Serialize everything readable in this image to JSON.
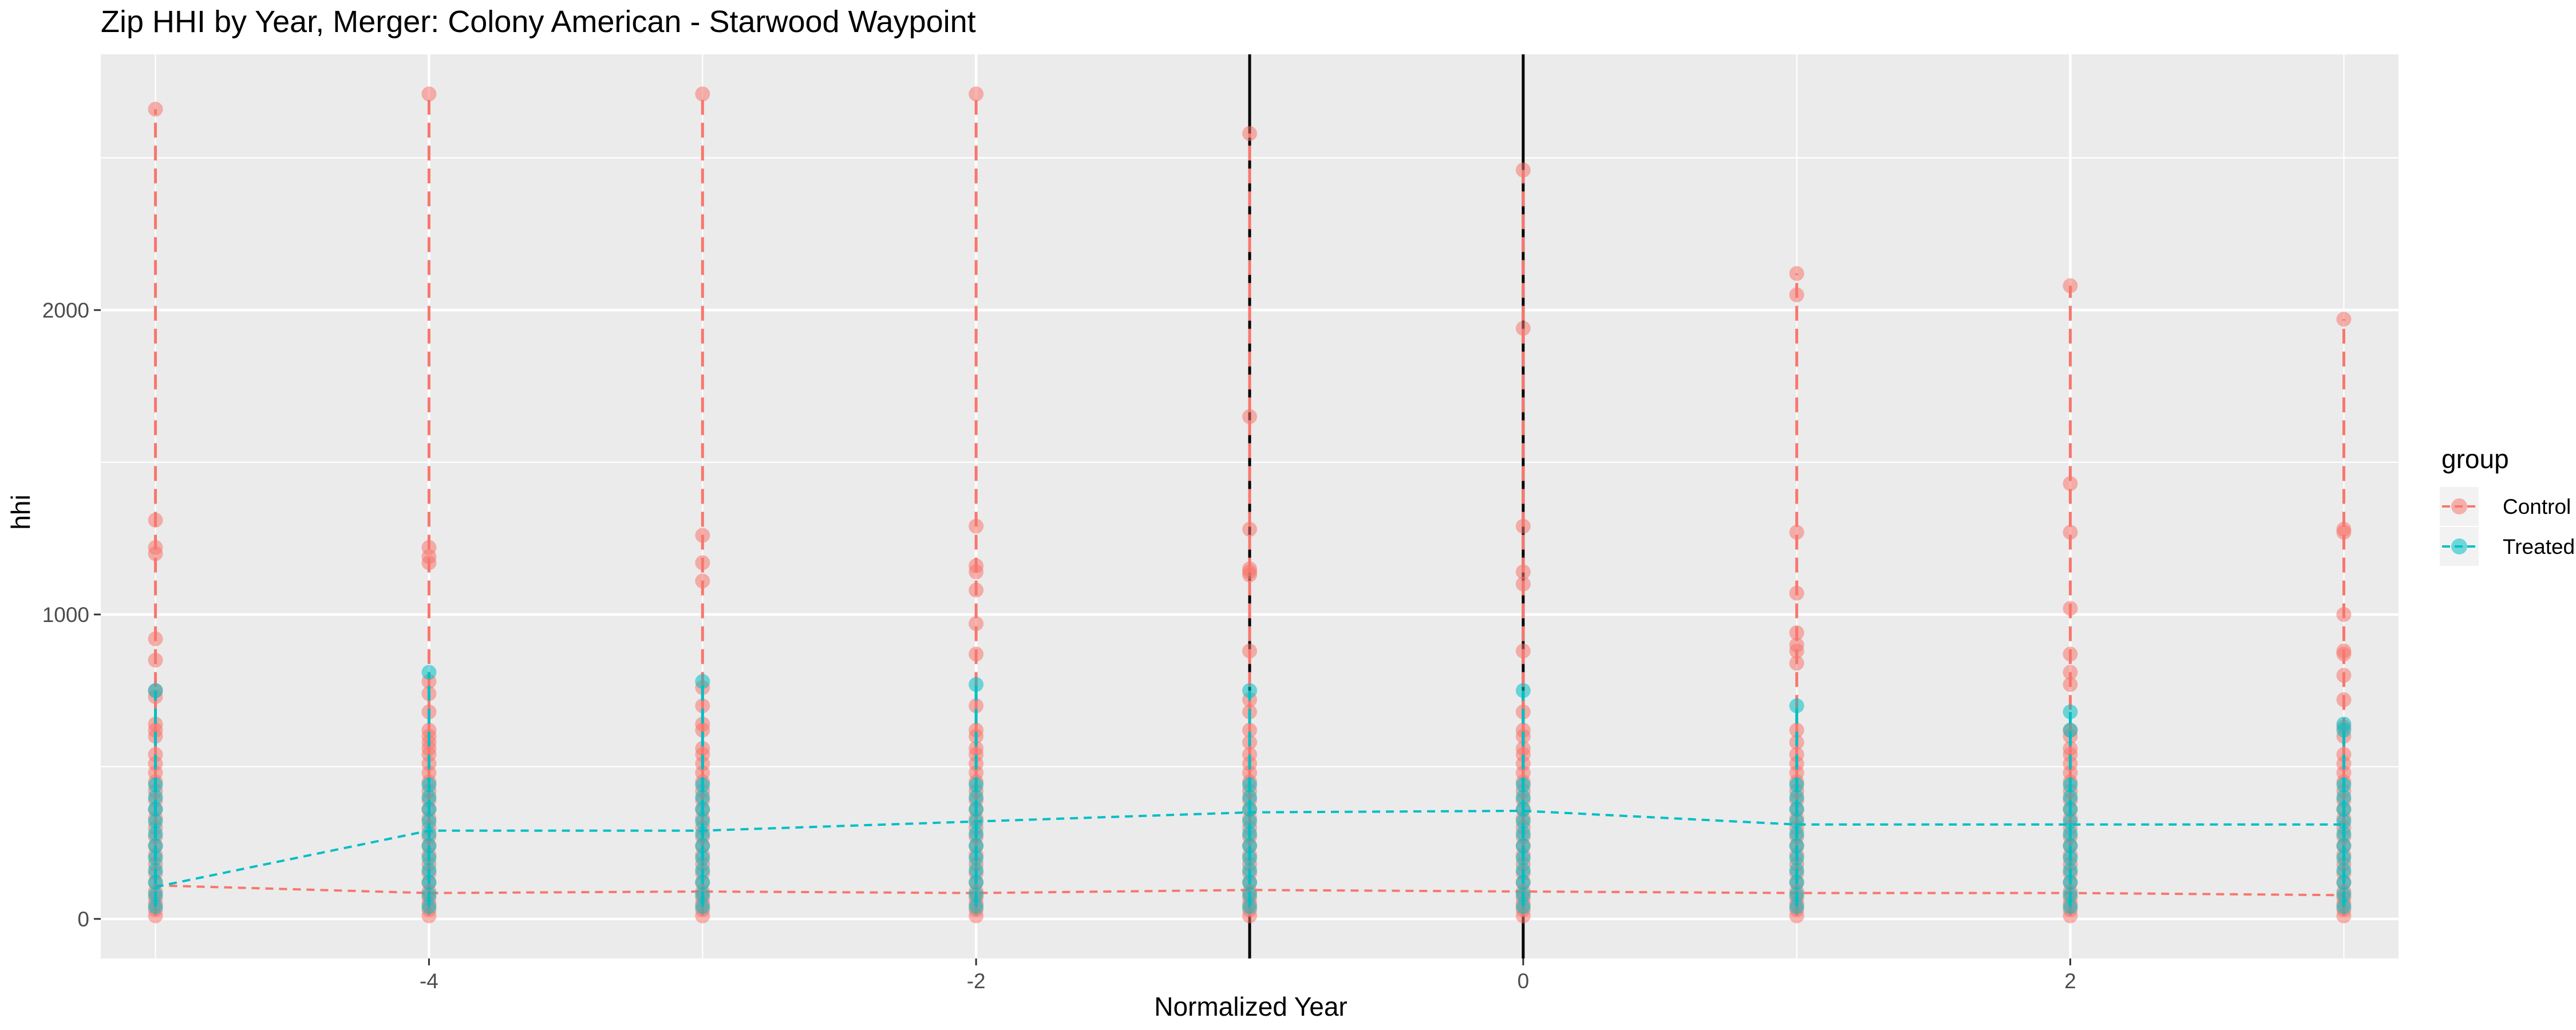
{
  "chart_data": {
    "type": "scatter",
    "title": "Zip HHI by Year, Merger: Colony American - Starwood Waypoint",
    "xlabel": "Normalized Year",
    "ylabel": "hhi",
    "xlim": [
      -5.2,
      3.2
    ],
    "ylim": [
      -130,
      2840
    ],
    "x_ticks": [
      -4,
      -2,
      0,
      2
    ],
    "y_ticks": [
      0,
      1000,
      2000
    ],
    "vertical_reference_lines": [
      -1,
      0
    ],
    "grid": true,
    "legend": {
      "title": "group",
      "position": "right",
      "items": [
        {
          "label": "Control",
          "color": "#F8766D"
        },
        {
          "label": "Treated",
          "color": "#00BFC4"
        }
      ]
    },
    "series": [
      {
        "name": "Control",
        "color": "#F8766D",
        "points": [
          {
            "x": -5,
            "y": [
              10,
              30,
              50,
              70,
              90,
              120,
              150,
              180,
              210,
              240,
              270,
              300,
              330,
              360,
              390,
              420,
              450,
              480,
              510,
              540,
              600,
              620,
              640,
              730,
              750,
              850,
              920,
              1200,
              1220,
              1310,
              2660
            ]
          },
          {
            "x": -4,
            "y": [
              10,
              30,
              50,
              70,
              90,
              120,
              150,
              180,
              210,
              240,
              270,
              300,
              330,
              360,
              390,
              420,
              450,
              480,
              510,
              540,
              560,
              580,
              600,
              620,
              680,
              740,
              780,
              1170,
              1190,
              1220,
              2710
            ]
          },
          {
            "x": -3,
            "y": [
              10,
              30,
              50,
              70,
              90,
              120,
              150,
              180,
              210,
              240,
              270,
              300,
              330,
              360,
              390,
              420,
              450,
              480,
              510,
              540,
              560,
              620,
              640,
              700,
              760,
              1110,
              1170,
              1260,
              2710
            ]
          },
          {
            "x": -2,
            "y": [
              10,
              30,
              50,
              70,
              90,
              120,
              150,
              180,
              210,
              240,
              270,
              300,
              330,
              360,
              390,
              420,
              450,
              480,
              510,
              540,
              560,
              600,
              620,
              700,
              870,
              970,
              1080,
              1140,
              1160,
              1290,
              2710
            ]
          },
          {
            "x": -1,
            "y": [
              10,
              30,
              50,
              70,
              90,
              120,
              150,
              180,
              210,
              240,
              270,
              300,
              330,
              360,
              390,
              420,
              450,
              480,
              510,
              540,
              580,
              620,
              680,
              720,
              880,
              1130,
              1140,
              1150,
              1280,
              1650,
              2580
            ]
          },
          {
            "x": 0,
            "y": [
              10,
              30,
              50,
              70,
              90,
              120,
              150,
              180,
              210,
              240,
              270,
              300,
              330,
              360,
              390,
              420,
              450,
              480,
              510,
              540,
              560,
              600,
              620,
              680,
              880,
              1100,
              1140,
              1290,
              1940,
              2460
            ]
          },
          {
            "x": 1,
            "y": [
              10,
              30,
              50,
              70,
              90,
              120,
              150,
              180,
              210,
              240,
              270,
              300,
              330,
              360,
              390,
              420,
              450,
              480,
              510,
              540,
              580,
              620,
              840,
              880,
              900,
              940,
              1070,
              1270,
              2050,
              2120
            ]
          },
          {
            "x": 2,
            "y": [
              10,
              30,
              50,
              70,
              90,
              120,
              150,
              180,
              210,
              240,
              270,
              300,
              330,
              360,
              390,
              420,
              450,
              480,
              510,
              540,
              560,
              600,
              620,
              770,
              810,
              870,
              1020,
              1270,
              1430,
              2080
            ]
          },
          {
            "x": 3,
            "y": [
              10,
              30,
              50,
              70,
              90,
              120,
              150,
              180,
              210,
              240,
              270,
              300,
              330,
              360,
              390,
              420,
              450,
              480,
              510,
              540,
              600,
              630,
              720,
              800,
              870,
              880,
              1000,
              1270,
              1280,
              1970
            ]
          }
        ],
        "line_values": [
          {
            "x": -5,
            "y": 110
          },
          {
            "x": -4,
            "y": 85
          },
          {
            "x": -3,
            "y": 90
          },
          {
            "x": -2,
            "y": 85
          },
          {
            "x": -1,
            "y": 95
          },
          {
            "x": 0,
            "y": 90
          },
          {
            "x": 1,
            "y": 85
          },
          {
            "x": 2,
            "y": 85
          },
          {
            "x": 3,
            "y": 78
          }
        ]
      },
      {
        "name": "Treated",
        "color": "#00BFC4",
        "points": [
          {
            "x": -5,
            "y": [
              40,
              80,
              120,
              160,
              200,
              240,
              280,
              320,
              360,
              400,
              440,
              750
            ]
          },
          {
            "x": -4,
            "y": [
              40,
              80,
              120,
              160,
              200,
              240,
              280,
              320,
              360,
              400,
              440,
              810
            ]
          },
          {
            "x": -3,
            "y": [
              40,
              80,
              120,
              160,
              200,
              240,
              280,
              320,
              360,
              400,
              440,
              780
            ]
          },
          {
            "x": -2,
            "y": [
              40,
              80,
              120,
              160,
              200,
              240,
              280,
              320,
              360,
              400,
              440,
              770
            ]
          },
          {
            "x": -1,
            "y": [
              40,
              80,
              120,
              160,
              200,
              240,
              280,
              320,
              360,
              400,
              440,
              750
            ]
          },
          {
            "x": 0,
            "y": [
              40,
              80,
              120,
              160,
              200,
              240,
              280,
              320,
              360,
              400,
              440,
              750
            ]
          },
          {
            "x": 1,
            "y": [
              40,
              80,
              120,
              160,
              200,
              240,
              280,
              320,
              360,
              400,
              440,
              700
            ]
          },
          {
            "x": 2,
            "y": [
              40,
              80,
              120,
              160,
              200,
              240,
              280,
              320,
              360,
              400,
              440,
              620,
              680
            ]
          },
          {
            "x": 3,
            "y": [
              40,
              80,
              120,
              160,
              200,
              240,
              280,
              320,
              360,
              400,
              440,
              620,
              640
            ]
          }
        ],
        "line_values": [
          {
            "x": -5,
            "y": 105
          },
          {
            "x": -4,
            "y": 290
          },
          {
            "x": -3,
            "y": 290
          },
          {
            "x": -2,
            "y": 320
          },
          {
            "x": -1,
            "y": 350
          },
          {
            "x": 0,
            "y": 355
          },
          {
            "x": 1,
            "y": 310
          },
          {
            "x": 2,
            "y": 310
          },
          {
            "x": 3,
            "y": 310
          }
        ]
      }
    ]
  }
}
